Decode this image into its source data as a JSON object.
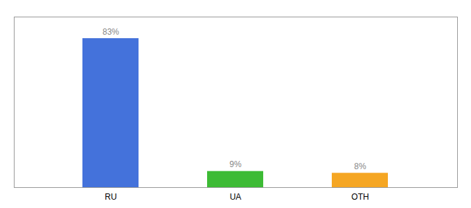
{
  "chart_data": {
    "type": "bar",
    "categories": [
      "RU",
      "UA",
      "OTH"
    ],
    "values": [
      83,
      9,
      8
    ],
    "value_labels": [
      "83%",
      "9%",
      "8%"
    ],
    "colors": [
      "#4472db",
      "#3dbb35",
      "#f5a623"
    ],
    "ylim": [
      0,
      95
    ],
    "data_labels": true,
    "tick_labels": "x"
  }
}
